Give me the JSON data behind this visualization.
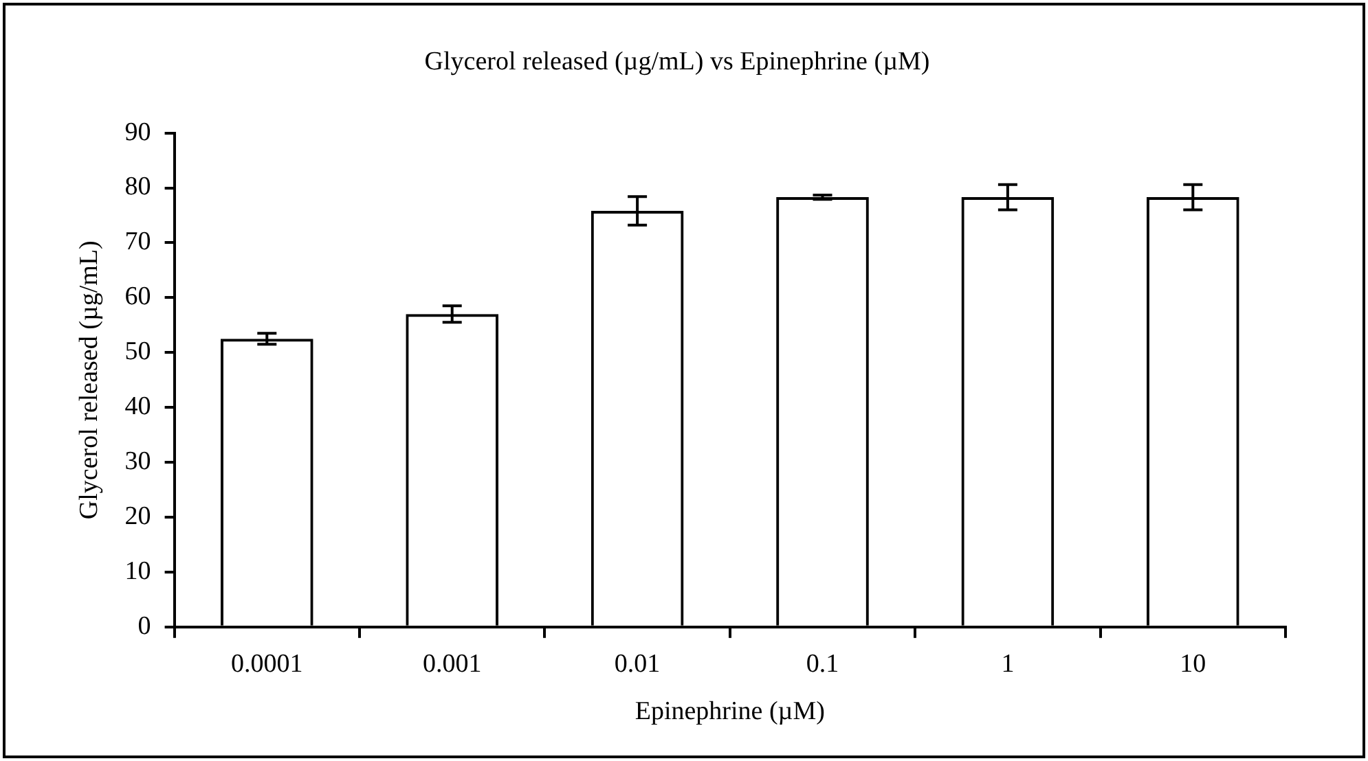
{
  "chart_data": {
    "type": "bar",
    "title": "Glycerol released (µg/mL) vs Epinephrine (µM)",
    "xlabel": "Epinephrine (µM)",
    "ylabel": "Glycerol released (µg/mL)",
    "categories": [
      "0.0001",
      "0.001",
      "0.01",
      "0.1",
      "1",
      "10"
    ],
    "values": [
      52.5,
      57,
      75.8,
      78.3,
      78.3,
      78.3
    ],
    "errors": [
      1,
      1.5,
      2.6,
      0.4,
      2.3,
      2.3
    ],
    "color": "#000000",
    "ylim": [
      0,
      90
    ],
    "yticks": [
      0,
      10,
      20,
      30,
      40,
      50,
      60,
      70,
      80,
      90
    ],
    "grid": false,
    "legend": false
  }
}
